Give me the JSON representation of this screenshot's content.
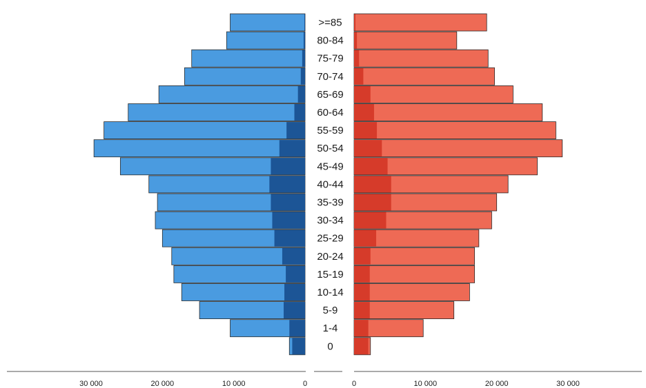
{
  "chart_data": {
    "type": "bar",
    "title": "",
    "xlabel": "",
    "ylabel": "",
    "categories": [
      "0",
      "1-4",
      "5-9",
      "10-14",
      "15-19",
      "20-24",
      "25-29",
      "30-34",
      "35-39",
      "40-44",
      "45-49",
      "50-54",
      "55-59",
      "60-64",
      "65-69",
      "70-74",
      "75-79",
      "80-84",
      ">=85"
    ],
    "x_ticks_left": [
      "30 000",
      "20 000",
      "10 000",
      "0"
    ],
    "x_ticks_right": [
      "0",
      "10 000",
      "20 000",
      "30 000"
    ],
    "xlim": [
      0,
      30000
    ],
    "grid": false,
    "legend": "none",
    "left_side": {
      "color_light": "#4a9be0",
      "color_dark": "#1c5596",
      "total": [
        2200,
        10500,
        14800,
        17300,
        18400,
        18700,
        20000,
        21000,
        20700,
        21900,
        25900,
        29600,
        28200,
        24800,
        20500,
        16900,
        15900,
        11000,
        10500
      ],
      "dark_part": [
        1800,
        2200,
        3000,
        2900,
        2700,
        3200,
        4300,
        4600,
        4800,
        5000,
        4800,
        3600,
        2600,
        1500,
        1000,
        600,
        400,
        200,
        100
      ]
    },
    "right_side": {
      "color_light": "#ee6a55",
      "color_dark": "#d63b2a",
      "total": [
        2300,
        9700,
        14000,
        16200,
        16900,
        16900,
        17500,
        19300,
        20000,
        21600,
        25700,
        29200,
        28300,
        26400,
        22300,
        19700,
        18800,
        14400,
        18600
      ],
      "dark_part": [
        2000,
        2000,
        2200,
        2200,
        2200,
        2300,
        3100,
        4500,
        5200,
        5200,
        4700,
        3900,
        3200,
        2800,
        2300,
        1300,
        700,
        400,
        200
      ]
    }
  }
}
